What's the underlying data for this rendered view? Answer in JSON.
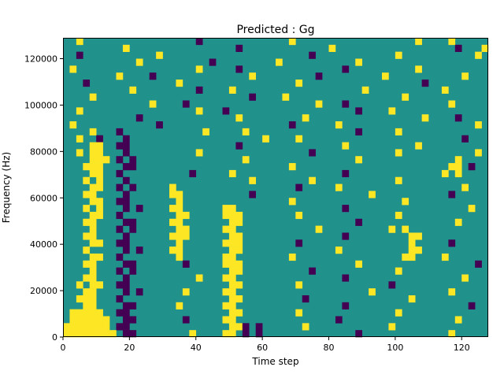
{
  "chart_data": {
    "type": "heatmap",
    "title": "Predicted : Gg",
    "xlabel": "Time step",
    "ylabel": "Frequency (Hz)",
    "x_range": [
      0,
      128
    ],
    "y_range": [
      0,
      129000
    ],
    "x_ticks": [
      0,
      20,
      40,
      60,
      80,
      100,
      120
    ],
    "x_tick_labels": [
      "0",
      "20",
      "40",
      "60",
      "80",
      "100",
      "120"
    ],
    "y_ticks": [
      0,
      20000,
      40000,
      60000,
      80000,
      100000,
      120000
    ],
    "y_tick_labels": [
      "0",
      "20000",
      "40000",
      "60000",
      "80000",
      "100000",
      "120000"
    ],
    "legend": "none",
    "grid": "off",
    "colormap": "viridis",
    "colors": {
      "mid": "#21918c",
      "high": "#fde725",
      "low": "#440154"
    },
    "cell_legend": {
      ".": "mid teal value",
      "y": "high yellow value",
      "d": "low dark-purple value"
    },
    "grid_cols": 64,
    "grid_rows": 43,
    "cell_time_span": 2,
    "cell_freq_span": 3000,
    "rows_top_to_bottom": [
      [
        "..y.....",
        "........",
        "....d...",
        "........",
        "..y.....",
        "........",
        ".....y..",
        "..y....."
      ],
      [
        "........",
        ".y......",
        "........",
        "..d.....",
        "........",
        "y.......",
        "........",
        "...d...y"
      ],
      [
        "..d.....",
        "......y.",
        "........",
        "........",
        ".....d..",
        "........",
        "..y.....",
        "......y."
      ],
      [
        "........",
        "...y....",
        "......d.",
        "........",
        "y.......",
        "....y...",
        "........",
        "........"
      ],
      [
        ".y......",
        "........",
        "....y...",
        "..d.....",
        "........",
        "..d.....",
        ".....y..",
        "........"
      ],
      [
        "........",
        "y....d..",
        "........",
        "....y...",
        "......d.",
        "........",
        "y.......",
        "....y..."
      ],
      [
        "...d....",
        "........",
        ".y......",
        "........",
        "...y....",
        "........",
        "......d.",
        "........"
      ],
      [
        "........",
        "..y.....",
        "....d...",
        ".y......",
        "........",
        ".....y..",
        "........",
        ".y......"
      ],
      [
        "....y...",
        "........",
        "........",
        "....d...",
        ".y......",
        "........",
        "...y....",
        "........"
      ],
      [
        "........",
        ".....y..",
        "..d.....",
        "........",
        "......y.",
        "..d.....",
        "........",
        "..y....."
      ],
      [
        "..y.....",
        "........",
        "....y...",
        "d.......",
        "........",
        "....d...",
        ".y......",
        "........"
      ],
      [
        "........",
        "...d....",
        "........",
        "..y.....",
        "....y...",
        "........",
        "......y.",
        "...d...."
      ],
      [
        ".y......",
        "......d.",
        "........",
        "........",
        "..d.....",
        ".y......",
        "........",
        "......y."
      ],
      [
        "....y...",
        "d.......",
        ".....y..",
        "...y....",
        "........",
        "....d...",
        "..y.....",
        "........"
      ],
      [
        "..y..d..",
        ".d......",
        "........",
        "......y.",
        "...y....",
        "........",
        "........",
        "....d..."
      ],
      [
        "....yy..",
        "dd......",
        "........",
        "..d.....",
        "........",
        "..y.....",
        ".....y..",
        "........"
      ],
      [
        "..y.yy..",
        ".d......",
        "....y...",
        "........",
        ".....d..",
        "........",
        "..y.....",
        "......y."
      ],
      [
        "....yyy.",
        "d.d.....",
        "........",
        "...y....",
        "........",
        "....y...",
        "........",
        "...y...."
      ],
      [
        "...yyy..",
        ".dd.....",
        "........",
        "........",
        "..y.....",
        "........",
        "........",
        "..yy.d.."
      ],
      [
        "....yy..",
        "d.......",
        "...d....",
        ".y......",
        "........",
        "..d.....",
        "........",
        ".y.y...."
      ],
      [
        "...y.y..",
        ".d......",
        "........",
        "....y...",
        ".....y..",
        "........",
        "..y.....",
        "........"
      ],
      [
        "....yy..",
        "d.d.....",
        "y.......",
        "........",
        "...d....",
        ".y......",
        "........",
        "....y..."
      ],
      [
        "...yy...",
        ".d......",
        "yy......",
        "....d...",
        "........",
        "......y.",
        "........",
        "..d....."
      ],
      [
        "....yy..",
        "dd......",
        ".y......",
        "........",
        "..y.....",
        "........",
        "...y....",
        "........"
      ],
      [
        "...y.y..",
        ".d.d....",
        "yy......",
        "yy......",
        "........",
        "..d.....",
        "........",
        ".....y.."
      ],
      [
        "....yy..",
        "d.......",
        ".yy.....",
        "yyy.....",
        "...y....",
        "........",
        "..y.....",
        "........"
      ],
      [
        "...yy...",
        ".dd.....",
        "yy......",
        ".yy.....",
        "........",
        "....d...",
        "........",
        "...y...."
      ],
      [
        "....y...",
        "d.d.....",
        ".yy.....",
        "yy......",
        "......y.",
        "........",
        ".y.y....",
        "........"
      ],
      [
        "...yy...",
        ".d......",
        "yyy.....",
        ".yy.....",
        "........",
        "..d.....",
        "....yy..",
        "........"
      ],
      [
        "....yy..",
        "dd......",
        ".y......",
        "yyy.....",
        "...d....",
        "........",
        "....y...",
        "..d....."
      ],
      [
        "...y....",
        ".d.d....",
        "yy......",
        ".yy.....",
        "........",
        ".y......",
        "....yy..",
        "........"
      ],
      [
        "....yy..",
        "d.......",
        ".y......",
        "yy......",
        "..y.....",
        "........",
        "...yy...",
        ".y......"
      ],
      [
        "...yy...",
        ".dd.....",
        "..d.....",
        "yyy.....",
        "........",
        "....y...",
        "........",
        "......d."
      ],
      [
        "....y...",
        "d.d.....",
        "........",
        ".yy.....",
        ".....d..",
        "........",
        "..y.....",
        "........"
      ],
      [
        "...yy...",
        ".d......",
        "....y...",
        "yy......",
        "........",
        "..d.....",
        "........",
        "....y..."
      ],
      [
        "..y.yy..",
        "dd......",
        "........",
        ".yy.....",
        "...y....",
        "........",
        ".d......",
        "........"
      ],
      [
        "...yy...",
        ".d.d....",
        "..y.....",
        "yy......",
        "........",
        "......y.",
        "........",
        "..y....."
      ],
      [
        "..yyy...",
        "d.......",
        "........",
        ".yy.....",
        "....d...",
        "........",
        "....y...",
        "........"
      ],
      [
        "...yy...",
        ".dd.....",
        ".y......",
        "yy......",
        "........",
        "..d.....",
        "........",
        ".....d.."
      ],
      [
        ".yyyyy..",
        "dd......",
        "........",
        ".yy.....",
        "...y....",
        "........",
        "..y.....",
        "........"
      ],
      [
        ".yyyyyy.",
        ".dd.....",
        "..d.....",
        "yy......",
        "........",
        ".d......",
        "........",
        "...y...."
      ],
      [
        "yyyyyyy.",
        "dd......",
        "........",
        ".yyd.d..",
        "....y...",
        "........",
        ".y......",
        "........"
      ],
      [
        "yyyyyyyy",
        ".dd.....",
        "...y....",
        "yy.d.d..",
        "........",
        "....d...",
        "........",
        "..y....."
      ]
    ]
  }
}
